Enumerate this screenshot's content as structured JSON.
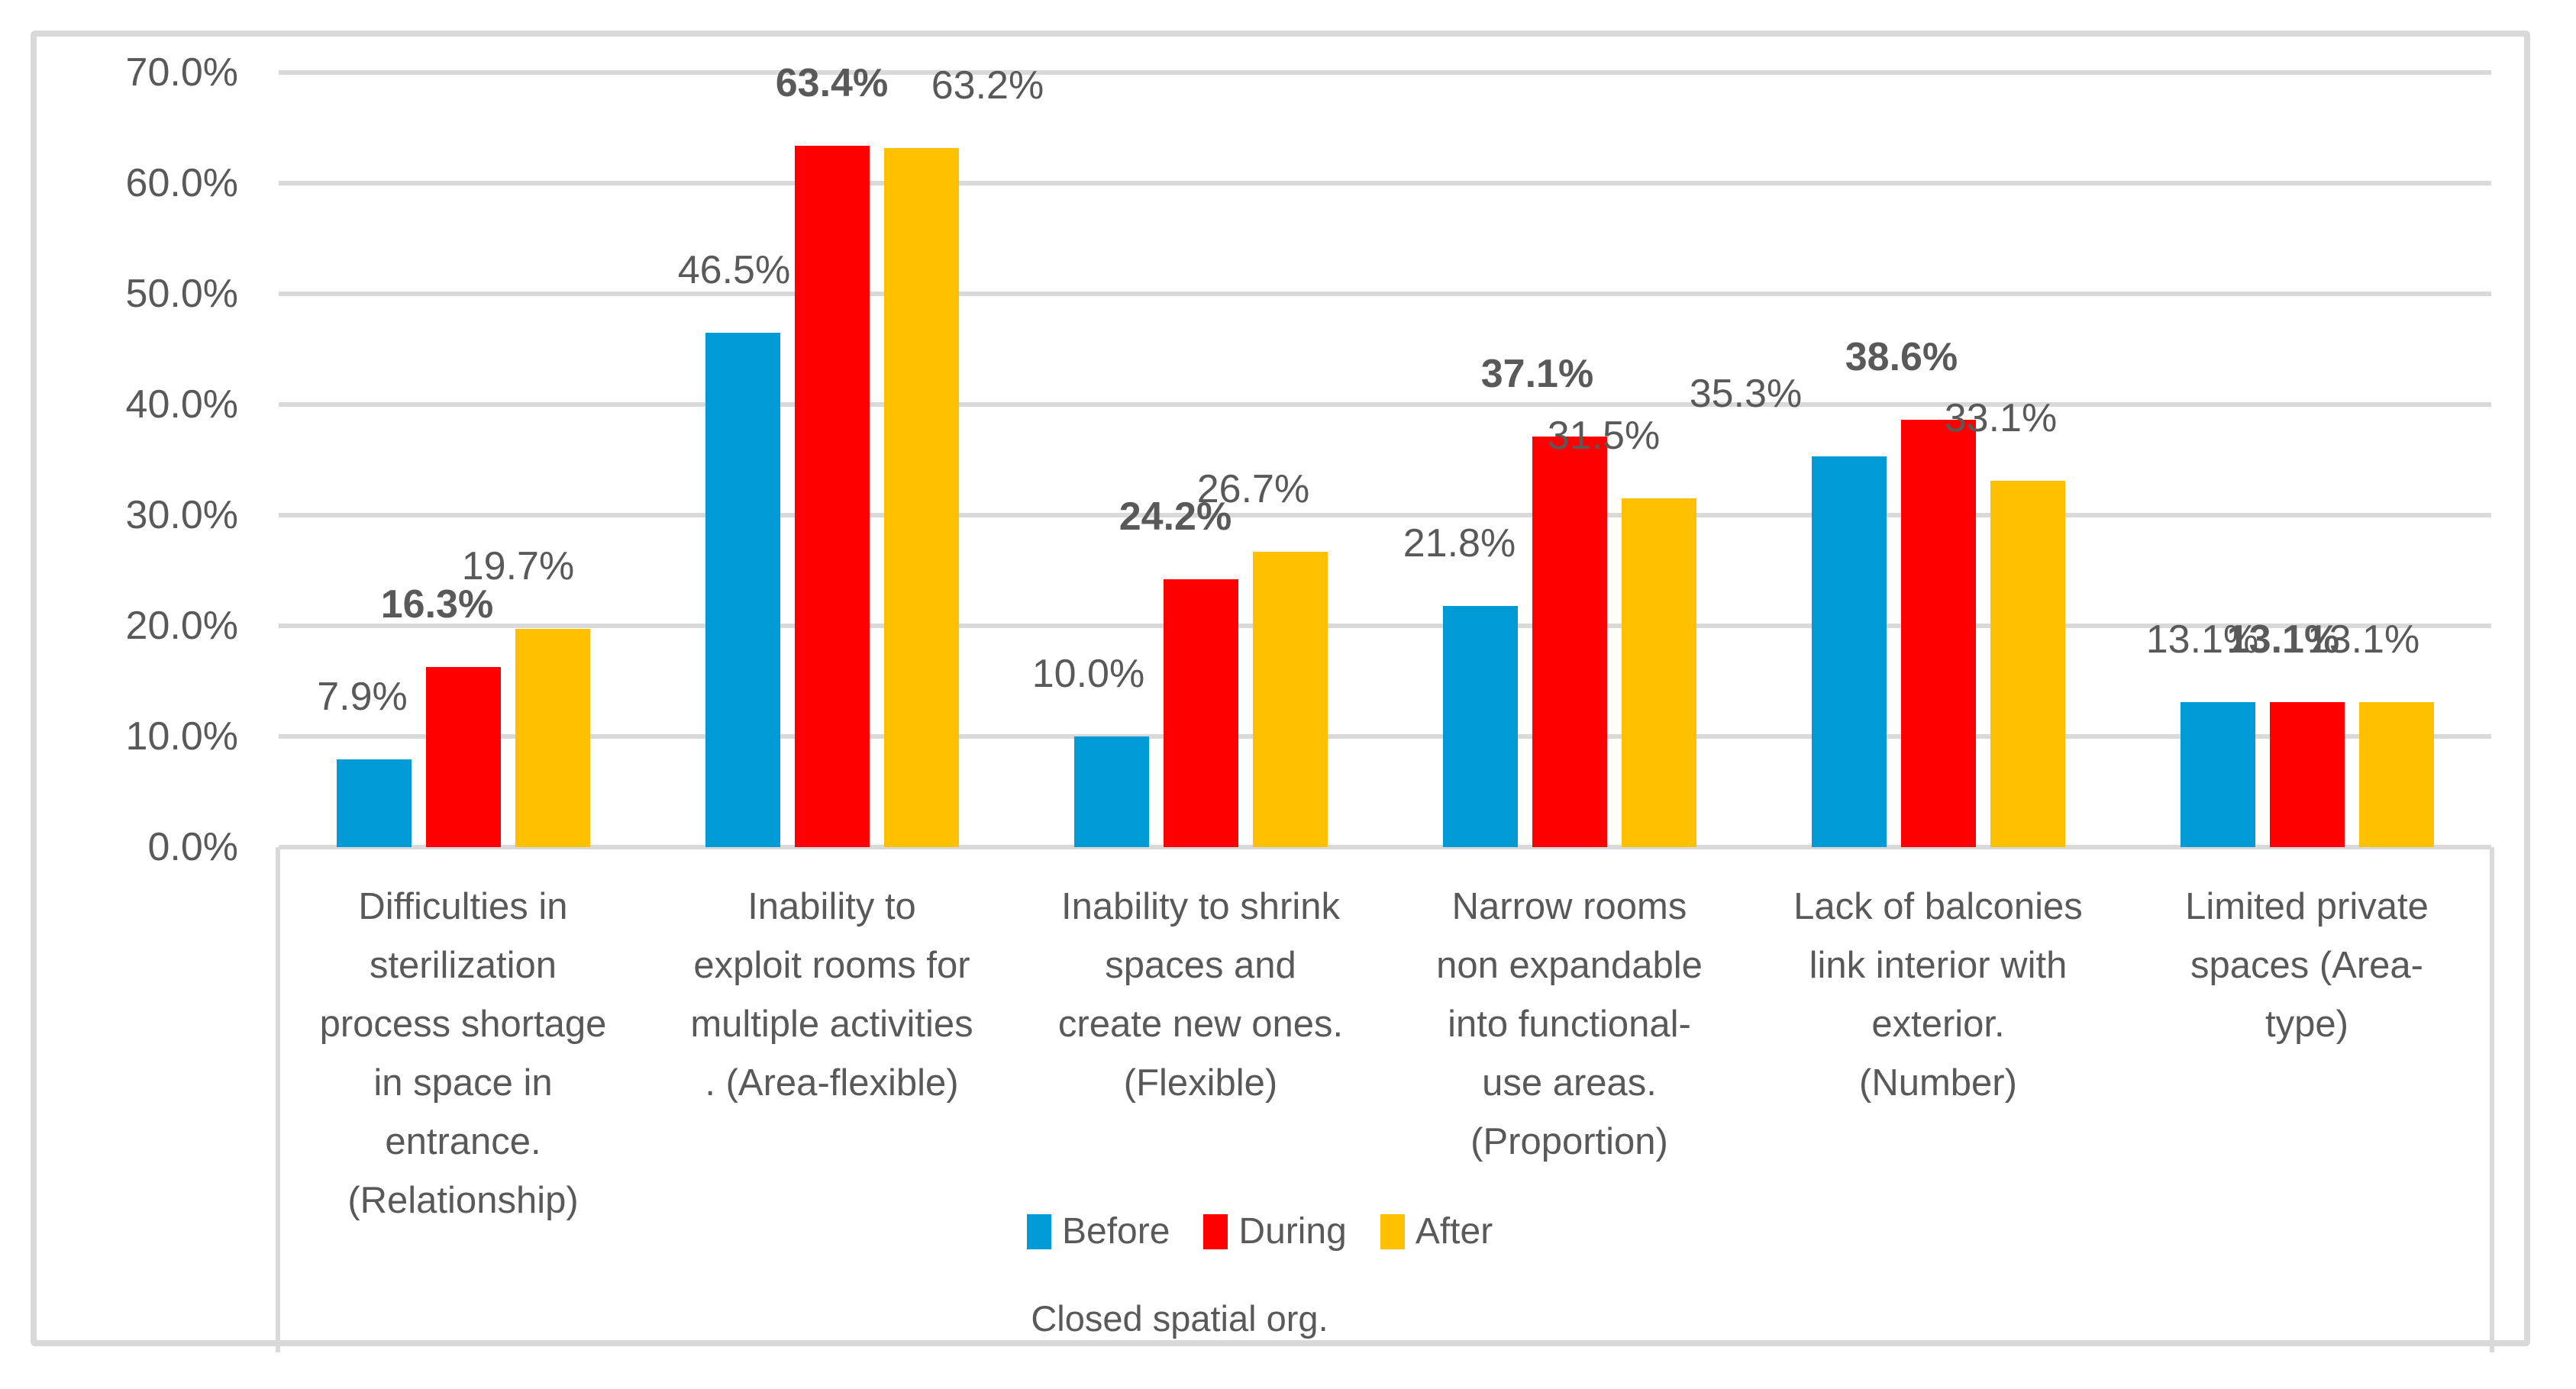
{
  "chart_data": {
    "type": "bar",
    "title": "",
    "x_axis_title": "Closed spatial org.",
    "grid": true,
    "legend": {
      "position": "bottom",
      "entries": [
        "Before",
        "During",
        "After"
      ]
    },
    "categories": [
      "Difficulties in\nsterilization\nprocess shortage\nin space in\nentrance.\n(Relationship)",
      "Inability to\nexploit rooms for\nmultiple activities\n. (Area-flexible)",
      "Inability to shrink\nspaces and\ncreate new ones.\n(Flexible)",
      "Narrow rooms\nnon expandable\ninto functional-\nuse areas.\n(Proportion)",
      "Lack of balconies\nlink interior with\nexterior.\n(Number)",
      "Limited private\nspaces (Area-\ntype)"
    ],
    "series": [
      {
        "name": "Before",
        "color": "#009AD7",
        "bold_labels": false,
        "values": [
          7.9,
          46.5,
          10.0,
          21.8,
          35.3,
          13.1
        ],
        "labels": [
          "7.9%",
          "46.5%",
          "10.0%",
          "21.8%",
          "35.3%",
          "13.1%"
        ]
      },
      {
        "name": "During",
        "color": "#FF0000",
        "bold_labels": true,
        "values": [
          16.3,
          63.4,
          24.2,
          37.1,
          38.6,
          13.1
        ],
        "labels": [
          "16.3%",
          "63.4%",
          "24.2%",
          "37.1%",
          "38.6%",
          "13.1%"
        ]
      },
      {
        "name": "After",
        "color": "#FFC000",
        "bold_labels": false,
        "values": [
          19.7,
          63.2,
          26.7,
          31.5,
          33.1,
          13.1
        ],
        "labels": [
          "19.7%",
          "63.2%",
          "26.7%",
          "31.5%",
          "33.1%",
          "13.1%"
        ]
      }
    ],
    "y_axis": {
      "min": 0,
      "max": 70,
      "step": 10,
      "tick_labels": [
        "0.0%",
        "10.0%",
        "20.0%",
        "30.0%",
        "40.0%",
        "50.0%",
        "60.0%",
        "70.0%"
      ]
    },
    "colors": {
      "gridline": "#D9D9D9",
      "border": "#D9D9D9",
      "text": "#595959"
    }
  }
}
